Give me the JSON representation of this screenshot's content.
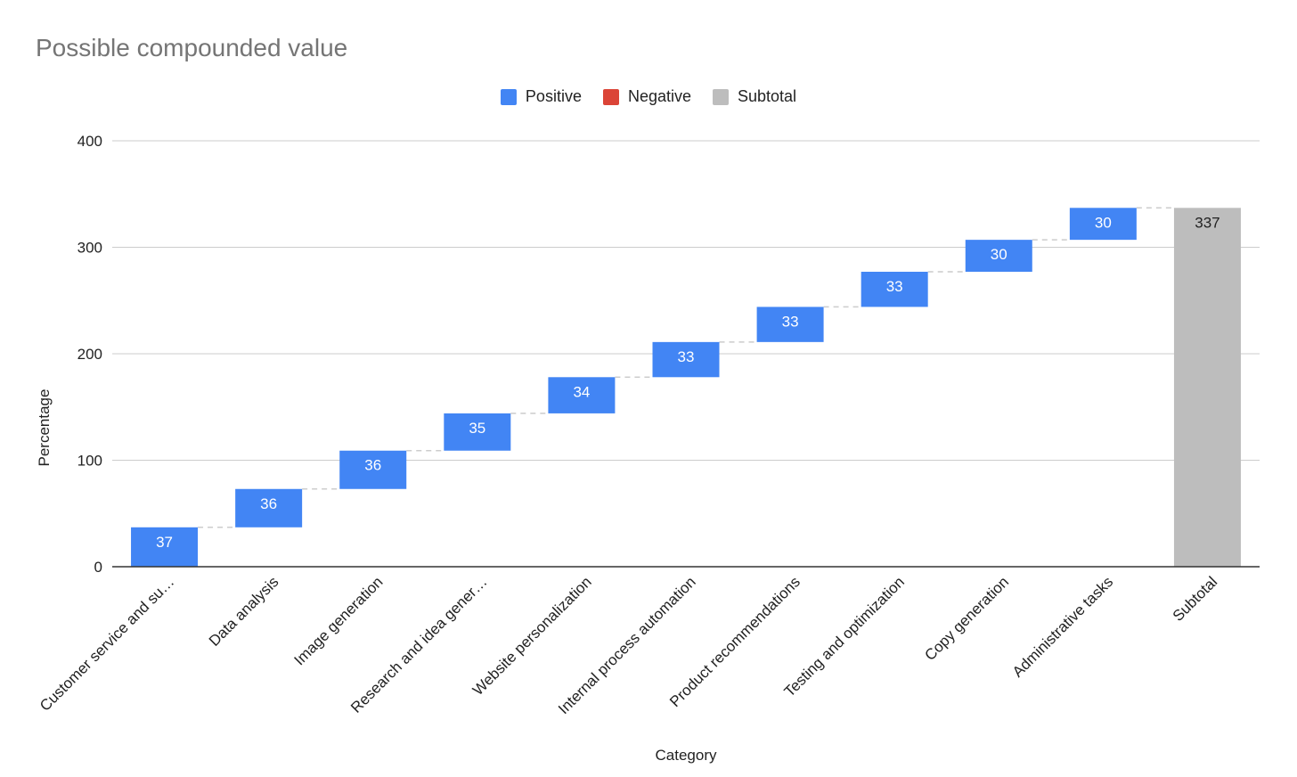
{
  "chart_data": {
    "type": "waterfall",
    "title": "Possible compounded value",
    "xlabel": "Category",
    "ylabel": "Percentage",
    "ylim": [
      0,
      400
    ],
    "yticks": [
      0,
      100,
      200,
      300,
      400
    ],
    "grid": true,
    "legend_position": "top-center",
    "legend": [
      {
        "label": "Positive",
        "color": "#4285f4"
      },
      {
        "label": "Negative",
        "color": "#db4437"
      },
      {
        "label": "Subtotal",
        "color": "#bdbdbd"
      }
    ],
    "categories": [
      "Customer service and su…",
      "Data analysis",
      "Image generation",
      "Research and idea gener…",
      "Website personalization",
      "Internal process automation",
      "Product recommendations",
      "Testing and optimization",
      "Copy generation",
      "Administrative tasks",
      "Subtotal"
    ],
    "values": [
      37,
      36,
      36,
      35,
      34,
      33,
      33,
      33,
      30,
      30,
      337
    ],
    "kinds": [
      "positive",
      "positive",
      "positive",
      "positive",
      "positive",
      "positive",
      "positive",
      "positive",
      "positive",
      "positive",
      "subtotal"
    ]
  }
}
